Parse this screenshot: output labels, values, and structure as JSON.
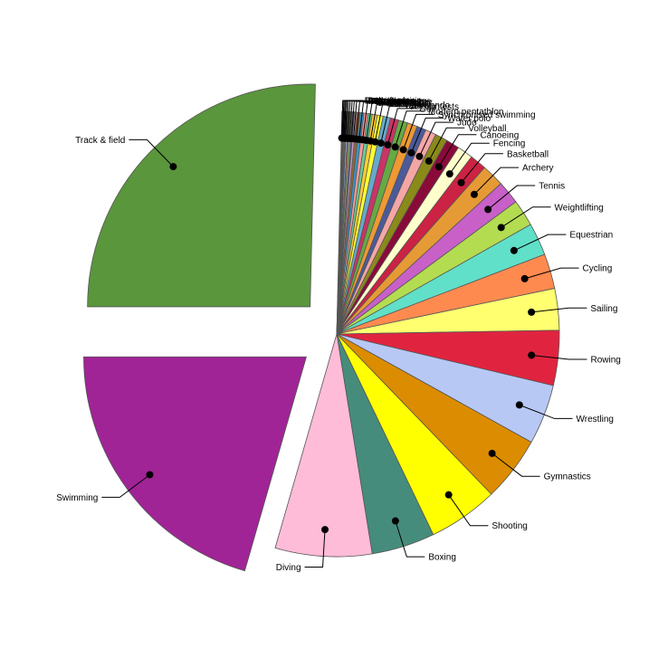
{
  "chart_data": {
    "type": "pie",
    "title": "",
    "start_angle_deg": 180,
    "direction": "clockwise",
    "legend": "none",
    "slices": [
      {
        "label": "Track & field",
        "value": 21.0,
        "color": "#5a963c",
        "explode": true
      },
      {
        "label": "Rugby union",
        "value": 0.06,
        "color": "#6e6e6e"
      },
      {
        "label": "Lacrosse",
        "value": 0.06,
        "color": "#b8860b"
      },
      {
        "label": "Tug of war",
        "value": 0.06,
        "color": "#8fbc8f"
      },
      {
        "label": "Polo",
        "value": 0.06,
        "color": "#c8a0dc"
      },
      {
        "label": "Motorboating",
        "value": 0.06,
        "color": "#e0a050"
      },
      {
        "label": "Figure skating",
        "value": 0.1,
        "color": "#80c0ff"
      },
      {
        "label": "Rackets",
        "value": 0.1,
        "color": "#cc6666"
      },
      {
        "label": "Jeu de paume",
        "value": 0.12,
        "color": "#99cc66"
      },
      {
        "label": "Cricket",
        "value": 0.12,
        "color": "#666699"
      },
      {
        "label": "Fight",
        "value": 0.15,
        "color": "#cc99cc"
      },
      {
        "label": "Field hockey",
        "value": 0.2,
        "color": "#996633"
      },
      {
        "label": "Handball",
        "value": 0.22,
        "color": "#3399cc"
      },
      {
        "label": "Baseball",
        "value": 0.25,
        "color": "#ff9999"
      },
      {
        "label": "Softball",
        "value": 0.25,
        "color": "#66cc99"
      },
      {
        "label": "Football",
        "value": 0.3,
        "color": "#ffcc33"
      },
      {
        "label": "Taekwondo",
        "value": 0.35,
        "color": "#ffff33"
      },
      {
        "label": "Art contests",
        "value": 0.45,
        "color": "#66aacc"
      },
      {
        "label": "Golf",
        "value": 0.5,
        "color": "#cc3366"
      },
      {
        "label": "Modern pentathlon",
        "value": 0.55,
        "color": "#66aa44"
      },
      {
        "label": "Synchronised swimming",
        "value": 0.6,
        "color": "#ee9933"
      },
      {
        "label": "Water polo",
        "value": 0.55,
        "color": "#4a5a9a"
      },
      {
        "label": "Judo",
        "value": 0.65,
        "color": "#f4a6a6"
      },
      {
        "label": "Volleyball",
        "value": 0.75,
        "color": "#8a8a1a"
      },
      {
        "label": "Canoeing",
        "value": 0.8,
        "color": "#8a0a3a"
      },
      {
        "label": "Fencing",
        "value": 0.95,
        "color": "#ffffcc"
      },
      {
        "label": "Basketball",
        "value": 1.0,
        "color": "#cc2244"
      },
      {
        "label": "Archery",
        "value": 1.35,
        "color": "#e69a35"
      },
      {
        "label": "Tennis",
        "value": 1.4,
        "color": "#c860c8"
      },
      {
        "label": "Weightlifting",
        "value": 1.6,
        "color": "#b4dc50"
      },
      {
        "label": "Equestrian",
        "value": 1.95,
        "color": "#60e0c8"
      },
      {
        "label": "Cycling",
        "value": 2.1,
        "color": "#ff8a50"
      },
      {
        "label": "Sailing",
        "value": 2.5,
        "color": "#ffff70"
      },
      {
        "label": "Rowing",
        "value": 3.3,
        "color": "#e02440"
      },
      {
        "label": "Wrestling",
        "value": 3.6,
        "color": "#b8c8f4"
      },
      {
        "label": "Gymnastics",
        "value": 3.9,
        "color": "#dc8c00"
      },
      {
        "label": "Shooting",
        "value": 4.2,
        "color": "#ffff00"
      },
      {
        "label": "Boxing",
        "value": 3.8,
        "color": "#468c7c"
      },
      {
        "label": "Diving",
        "value": 5.8,
        "color": "#ffbcd8"
      },
      {
        "label": "Swimming",
        "value": 17.0,
        "color": "#a02496",
        "explode": true
      }
    ]
  }
}
